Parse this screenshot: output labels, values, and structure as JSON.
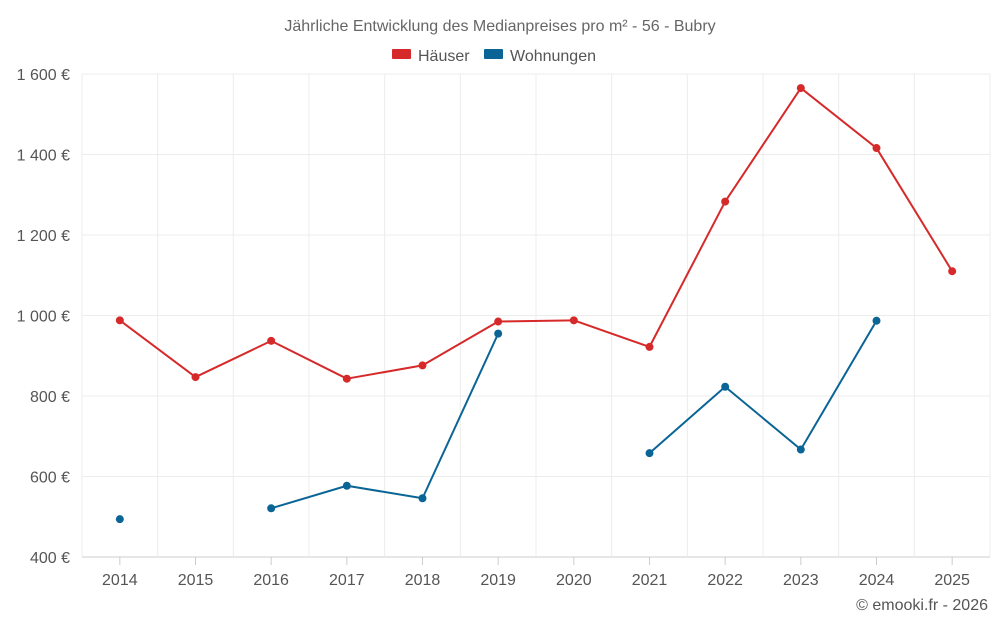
{
  "chart_data": {
    "type": "line",
    "title": "Jährliche Entwicklung des Medianpreises pro m² - 56 - Bubry",
    "categories": [
      "2014",
      "2015",
      "2016",
      "2017",
      "2018",
      "2019",
      "2020",
      "2021",
      "2022",
      "2023",
      "2024",
      "2025"
    ],
    "ylim": [
      400,
      1600
    ],
    "yticks": [
      400,
      600,
      800,
      1000,
      1200,
      1400,
      1600
    ],
    "ytick_labels": [
      "400 €",
      "600 €",
      "800 €",
      "1 000 €",
      "1 200 €",
      "1 400 €",
      "1 600 €"
    ],
    "grid": true,
    "legend_position": "top-center",
    "series": [
      {
        "name": "Häuser",
        "color": "#d62a2a",
        "values": [
          988,
          847,
          937,
          843,
          876,
          985,
          988,
          922,
          1283,
          1565,
          1416,
          1110
        ]
      },
      {
        "name": "Wohnungen",
        "color": "#0a6596",
        "values": [
          494,
          null,
          521,
          577,
          546,
          955,
          null,
          658,
          823,
          667,
          987,
          null
        ]
      }
    ]
  },
  "credit": "© emooki.fr - 2026"
}
